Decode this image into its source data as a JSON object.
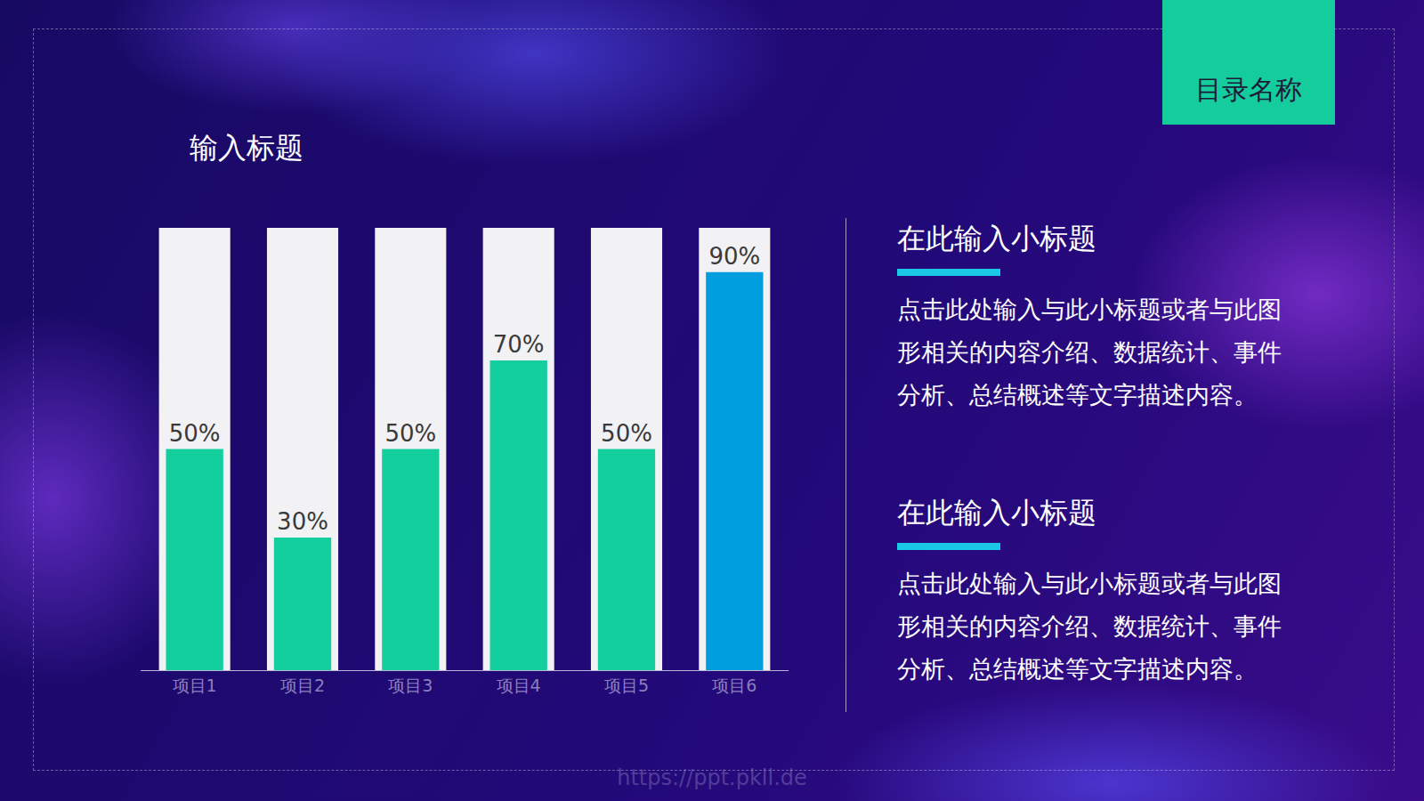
{
  "slide": {
    "section_tab": "目录名称",
    "watermark": "https://ppt.pkll.de",
    "panels": [
      {
        "subtitle": "在此输入小标题",
        "text": "点击此处输入与此小标题或者与此图形相关的内容介绍、数据统计、事件分析、总结概述等文字描述内容。"
      },
      {
        "subtitle": "在此输入小标题",
        "text": "点击此处输入与此小标题或者与此图形相关的内容介绍、数据统计、事件分析、总结概述等文字描述内容。"
      }
    ]
  },
  "chart_data": {
    "type": "bar",
    "title": "输入标题",
    "categories": [
      "项目1",
      "项目2",
      "项目3",
      "项目4",
      "项目5",
      "项目6"
    ],
    "values": [
      50,
      30,
      50,
      70,
      50,
      90
    ],
    "value_labels": [
      "50%",
      "30%",
      "50%",
      "70%",
      "50%",
      "90%"
    ],
    "colors": [
      "#13cf9e",
      "#13cf9e",
      "#13cf9e",
      "#13cf9e",
      "#13cf9e",
      "#009ddf"
    ],
    "ylim": [
      0,
      100
    ],
    "data_labels": true,
    "tick_labels": "x",
    "grid": false
  }
}
